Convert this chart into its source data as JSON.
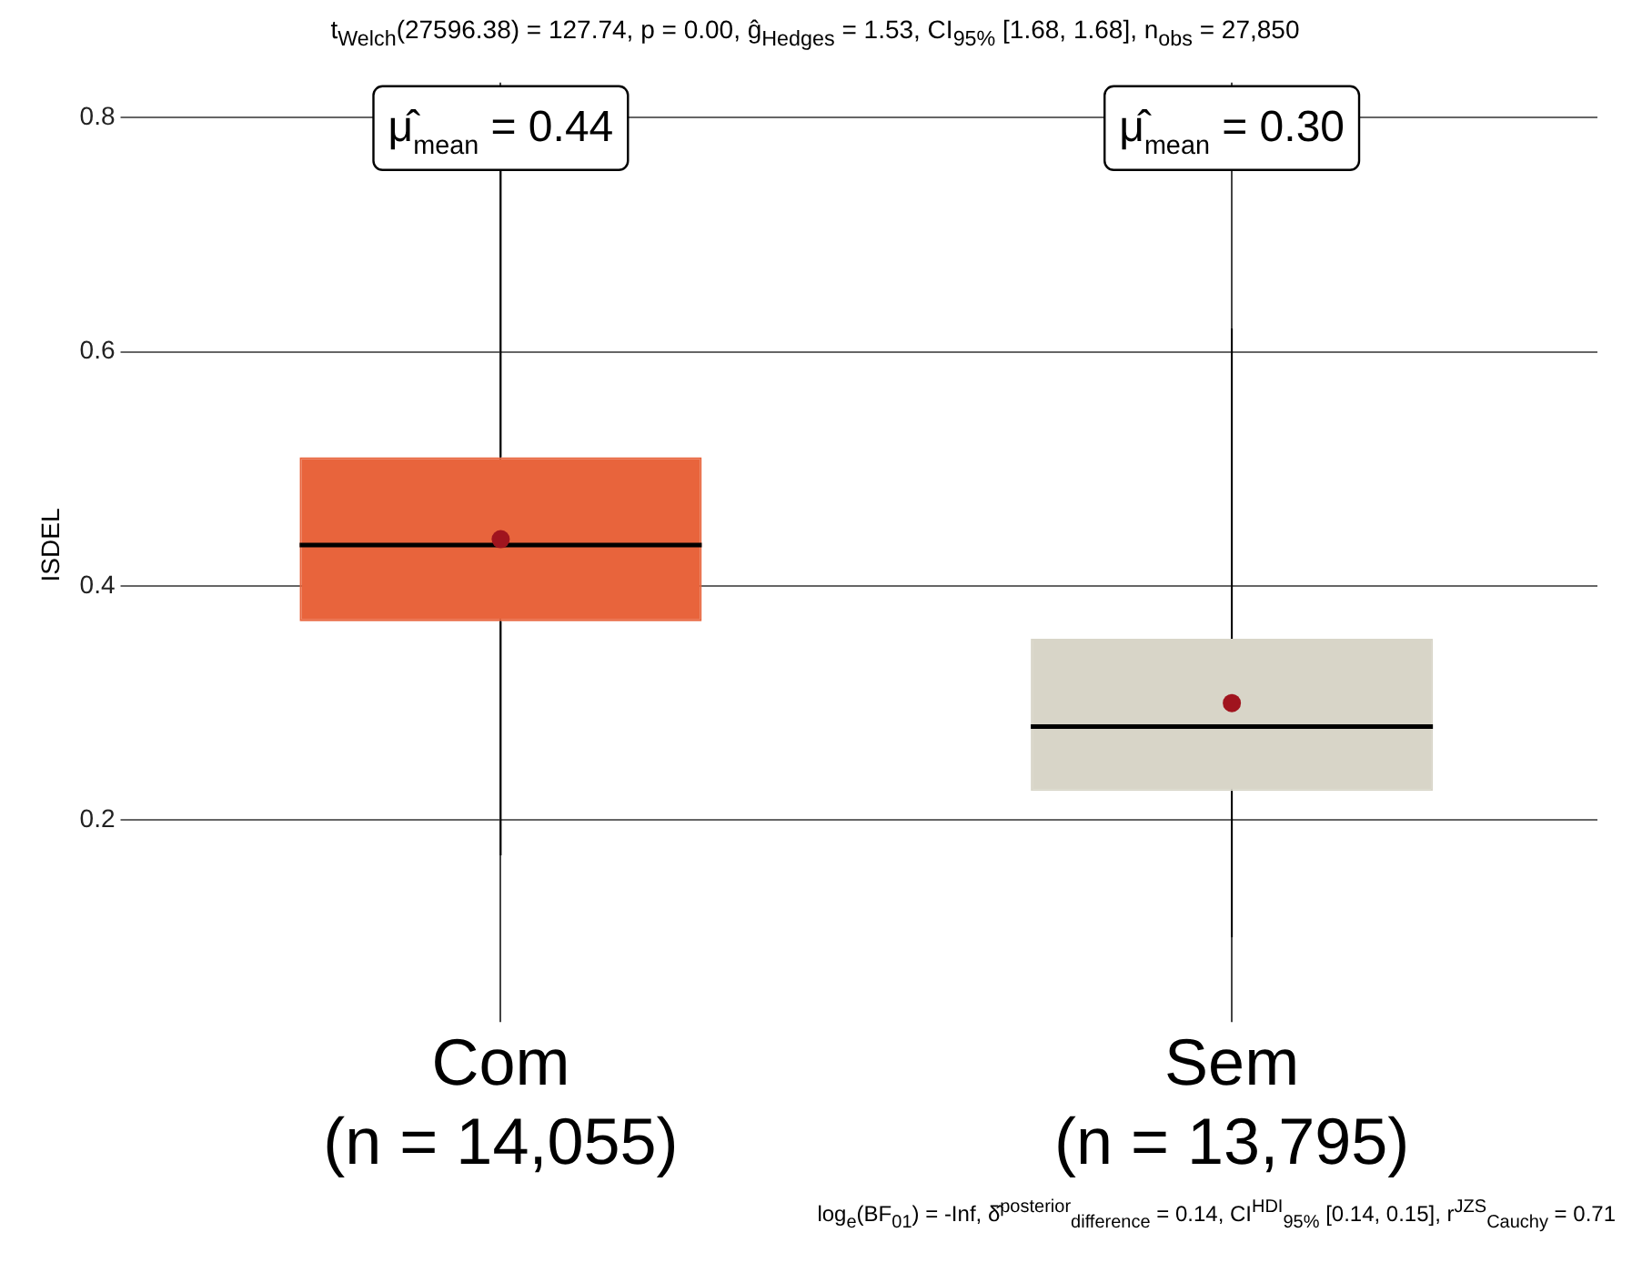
{
  "chart_data": {
    "type": "box",
    "title": "t$_{Welch}$(27596.38) = 127.74, p = 0.00, ĝ$_{Hedges}$ = 1.53, CI$_{95%}$ [1.68, 1.68], n$_{obs}$ = 27,850",
    "ylabel": "ISDEL",
    "categories": [
      "Com\n(n = 14,055)",
      "Sem\n(n = 13,795)"
    ],
    "colors": [
      "#e8643c",
      "#d8d5c8"
    ],
    "boxes": [
      {
        "low": 0.17,
        "q1": 0.37,
        "median": 0.435,
        "q3": 0.51,
        "high": 0.76,
        "mean": 0.44
      },
      {
        "low": 0.1,
        "q1": 0.225,
        "median": 0.28,
        "q3": 0.355,
        "high": 0.62,
        "mean": 0.3
      }
    ],
    "ylim": [
      0.04,
      0.83
    ],
    "yticks": [
      0.2,
      0.4,
      0.6,
      0.8
    ],
    "grid": true,
    "legend": false,
    "annotations": [
      "μ̂$_{mean}$ = 0.44",
      "μ̂$_{mean}$ = 0.30",
      "log$_{e}$(BF$_{01}$) = -Inf, δ̂$^{posterior}$$_{difference}$ = 0.14, CI$^{HDI}$$_{95%}$ [0.14, 0.15], r$^{JZS}$$_{Cauchy}$ = 0.71"
    ]
  }
}
